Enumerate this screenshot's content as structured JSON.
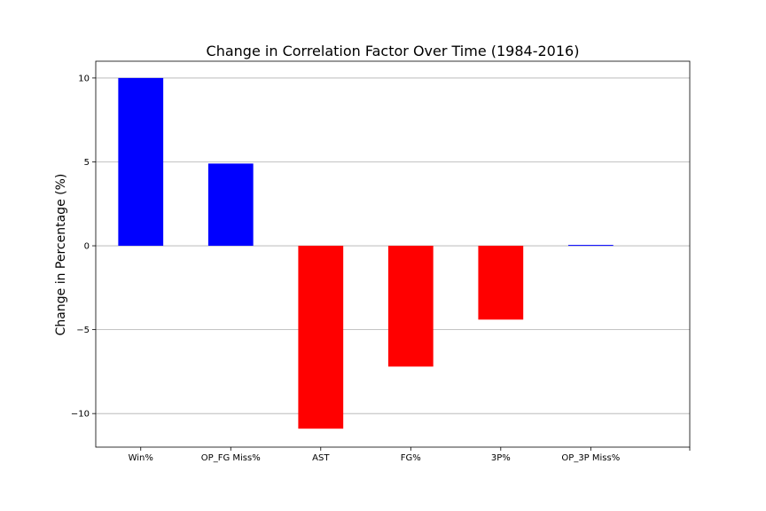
{
  "chart_data": {
    "type": "bar",
    "title": "Change in Correlation Factor Over Time (1984-2016)",
    "xlabel": "",
    "ylabel": "Change in Percentage (%)",
    "categories": [
      "Win%",
      "OP_FG Miss%",
      "AST",
      "FG%",
      "3P%",
      "OP_3P Miss%"
    ],
    "values": [
      10.0,
      4.9,
      -10.9,
      -7.2,
      -4.4,
      0.05
    ],
    "bar_colors": [
      "#0000ff",
      "#0000ff",
      "#ff0000",
      "#ff0000",
      "#ff0000",
      "#0000ff"
    ],
    "ylim": [
      -12,
      11
    ],
    "xlim": [
      -0.5,
      6.1
    ],
    "yticks": [
      10,
      5,
      0,
      -5,
      -10
    ],
    "ytick_labels": [
      "10",
      "5",
      "0",
      "−5",
      "−10"
    ],
    "grid": "y"
  }
}
